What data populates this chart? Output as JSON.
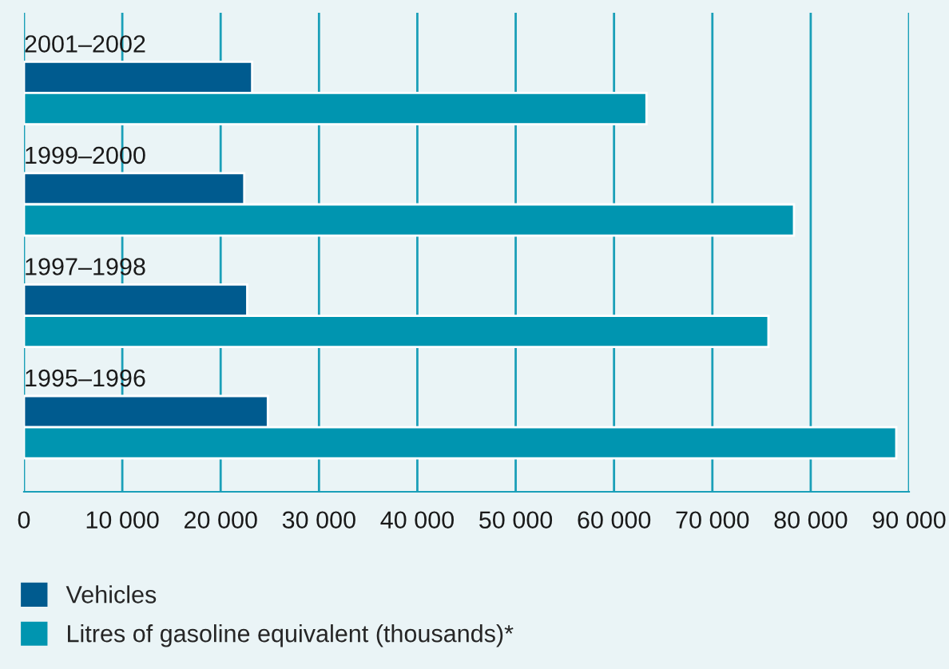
{
  "chart_data": {
    "type": "bar",
    "orientation": "horizontal",
    "categories": [
      "2001–2002",
      "1999–2000",
      "1997–1998",
      "1995–1996"
    ],
    "series": [
      {
        "name": "Vehicles",
        "color": "#005b8f",
        "values": [
          23200,
          22400,
          22700,
          24800
        ]
      },
      {
        "name": "Litres of gasoline equivalent (thousands)*",
        "color": "#0095b0",
        "values": [
          63300,
          78300,
          75700,
          88700
        ]
      }
    ],
    "xlim": [
      0,
      90000
    ],
    "xticks": [
      0,
      {
        "value": 10000,
        "label": "10 000"
      },
      {
        "value": 20000,
        "label": "20 000"
      },
      {
        "value": 30000,
        "label": "30 000"
      },
      {
        "value": 40000,
        "label": "40 000"
      },
      {
        "value": 50000,
        "label": "50 000"
      },
      {
        "value": 60000,
        "label": "60 000"
      },
      {
        "value": 70000,
        "label": "70 000"
      },
      {
        "value": 80000,
        "label": "80 000"
      },
      {
        "value": 90000,
        "label": "90 000"
      }
    ],
    "grid": "x",
    "legend": "bottom left"
  }
}
